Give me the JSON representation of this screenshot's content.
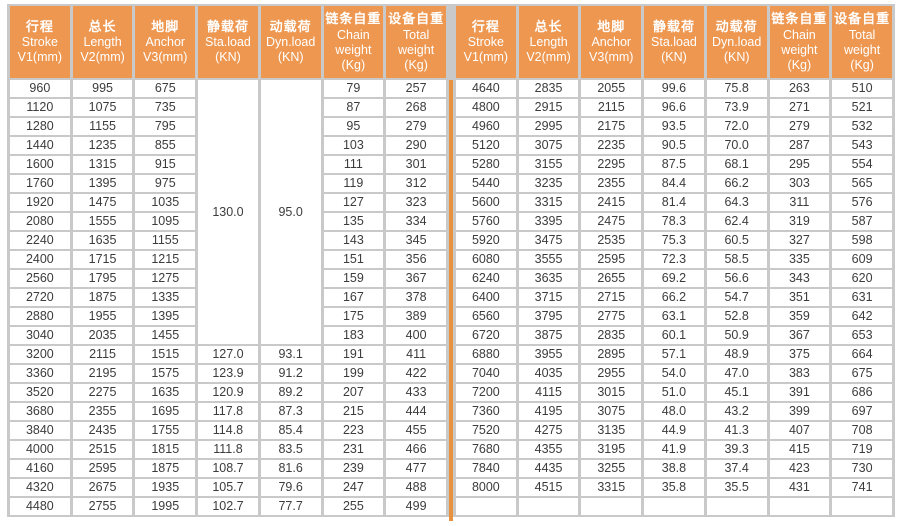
{
  "colors": {
    "header_bg": "#ee9750",
    "header_text": "#ffffff",
    "grid": "#c9c9c9",
    "cell_bg": "#ffffff",
    "cell_text": "#3c3c3c",
    "divider": "#e8913f"
  },
  "columns": [
    {
      "lines": [
        "行程",
        "Stroke",
        "V1(mm)"
      ]
    },
    {
      "lines": [
        "总长",
        "Length",
        "V2(mm)"
      ]
    },
    {
      "lines": [
        "地脚",
        "Anchor",
        "V3(mm)"
      ]
    },
    {
      "lines": [
        "静载荷",
        "Sta.load",
        "(KN)"
      ]
    },
    {
      "lines": [
        "动载荷",
        "Dyn.load",
        "(KN)"
      ]
    },
    {
      "lines": [
        "链条自重",
        "Chain",
        "weight",
        "(Kg)"
      ]
    },
    {
      "lines": [
        "设备自重",
        "Total",
        "weight",
        "(Kg)"
      ]
    }
  ],
  "left": {
    "merges": [
      {
        "col": 3,
        "row": 0,
        "span": 14,
        "value": "130.0"
      },
      {
        "col": 4,
        "row": 0,
        "span": 14,
        "value": "95.0"
      }
    ],
    "rows": [
      [
        "960",
        "995",
        "675",
        "",
        "",
        "79",
        "257"
      ],
      [
        "1120",
        "1075",
        "735",
        "",
        "",
        "87",
        "268"
      ],
      [
        "1280",
        "1155",
        "795",
        "",
        "",
        "95",
        "279"
      ],
      [
        "1440",
        "1235",
        "855",
        "",
        "",
        "103",
        "290"
      ],
      [
        "1600",
        "1315",
        "915",
        "",
        "",
        "111",
        "301"
      ],
      [
        "1760",
        "1395",
        "975",
        "",
        "",
        "119",
        "312"
      ],
      [
        "1920",
        "1475",
        "1035",
        "",
        "",
        "127",
        "323"
      ],
      [
        "2080",
        "1555",
        "1095",
        "",
        "",
        "135",
        "334"
      ],
      [
        "2240",
        "1635",
        "1155",
        "",
        "",
        "143",
        "345"
      ],
      [
        "2400",
        "1715",
        "1215",
        "",
        "",
        "151",
        "356"
      ],
      [
        "2560",
        "1795",
        "1275",
        "",
        "",
        "159",
        "367"
      ],
      [
        "2720",
        "1875",
        "1335",
        "",
        "",
        "167",
        "378"
      ],
      [
        "2880",
        "1955",
        "1395",
        "",
        "",
        "175",
        "389"
      ],
      [
        "3040",
        "2035",
        "1455",
        "",
        "",
        "183",
        "400"
      ],
      [
        "3200",
        "2115",
        "1515",
        "127.0",
        "93.1",
        "191",
        "411"
      ],
      [
        "3360",
        "2195",
        "1575",
        "123.9",
        "91.2",
        "199",
        "422"
      ],
      [
        "3520",
        "2275",
        "1635",
        "120.9",
        "89.2",
        "207",
        "433"
      ],
      [
        "3680",
        "2355",
        "1695",
        "117.8",
        "87.3",
        "215",
        "444"
      ],
      [
        "3840",
        "2435",
        "1755",
        "114.8",
        "85.4",
        "223",
        "455"
      ],
      [
        "4000",
        "2515",
        "1815",
        "111.8",
        "83.5",
        "231",
        "466"
      ],
      [
        "4160",
        "2595",
        "1875",
        "108.7",
        "81.6",
        "239",
        "477"
      ],
      [
        "4320",
        "2675",
        "1935",
        "105.7",
        "79.6",
        "247",
        "488"
      ],
      [
        "4480",
        "2755",
        "1995",
        "102.7",
        "77.7",
        "255",
        "499"
      ]
    ]
  },
  "right": {
    "merges": [],
    "rows": [
      [
        "4640",
        "2835",
        "2055",
        "99.6",
        "75.8",
        "263",
        "510"
      ],
      [
        "4800",
        "2915",
        "2115",
        "96.6",
        "73.9",
        "271",
        "521"
      ],
      [
        "4960",
        "2995",
        "2175",
        "93.5",
        "72.0",
        "279",
        "532"
      ],
      [
        "5120",
        "3075",
        "2235",
        "90.5",
        "70.0",
        "287",
        "543"
      ],
      [
        "5280",
        "3155",
        "2295",
        "87.5",
        "68.1",
        "295",
        "554"
      ],
      [
        "5440",
        "3235",
        "2355",
        "84.4",
        "66.2",
        "303",
        "565"
      ],
      [
        "5600",
        "3315",
        "2415",
        "81.4",
        "64.3",
        "311",
        "576"
      ],
      [
        "5760",
        "3395",
        "2475",
        "78.3",
        "62.4",
        "319",
        "587"
      ],
      [
        "5920",
        "3475",
        "2535",
        "75.3",
        "60.5",
        "327",
        "598"
      ],
      [
        "6080",
        "3555",
        "2595",
        "72.3",
        "58.5",
        "335",
        "609"
      ],
      [
        "6240",
        "3635",
        "2655",
        "69.2",
        "56.6",
        "343",
        "620"
      ],
      [
        "6400",
        "3715",
        "2715",
        "66.2",
        "54.7",
        "351",
        "631"
      ],
      [
        "6560",
        "3795",
        "2775",
        "63.1",
        "52.8",
        "359",
        "642"
      ],
      [
        "6720",
        "3875",
        "2835",
        "60.1",
        "50.9",
        "367",
        "653"
      ],
      [
        "6880",
        "3955",
        "2895",
        "57.1",
        "48.9",
        "375",
        "664"
      ],
      [
        "7040",
        "4035",
        "2955",
        "54.0",
        "47.0",
        "383",
        "675"
      ],
      [
        "7200",
        "4115",
        "3015",
        "51.0",
        "45.1",
        "391",
        "686"
      ],
      [
        "7360",
        "4195",
        "3075",
        "48.0",
        "43.2",
        "399",
        "697"
      ],
      [
        "7520",
        "4275",
        "3135",
        "44.9",
        "41.3",
        "407",
        "708"
      ],
      [
        "7680",
        "4355",
        "3195",
        "41.9",
        "39.3",
        "415",
        "719"
      ],
      [
        "7840",
        "4435",
        "3255",
        "38.8",
        "37.4",
        "423",
        "730"
      ],
      [
        "8000",
        "4515",
        "3315",
        "35.8",
        "35.5",
        "431",
        "741"
      ],
      [
        "",
        "",
        "",
        "",
        "",
        "",
        ""
      ]
    ]
  }
}
